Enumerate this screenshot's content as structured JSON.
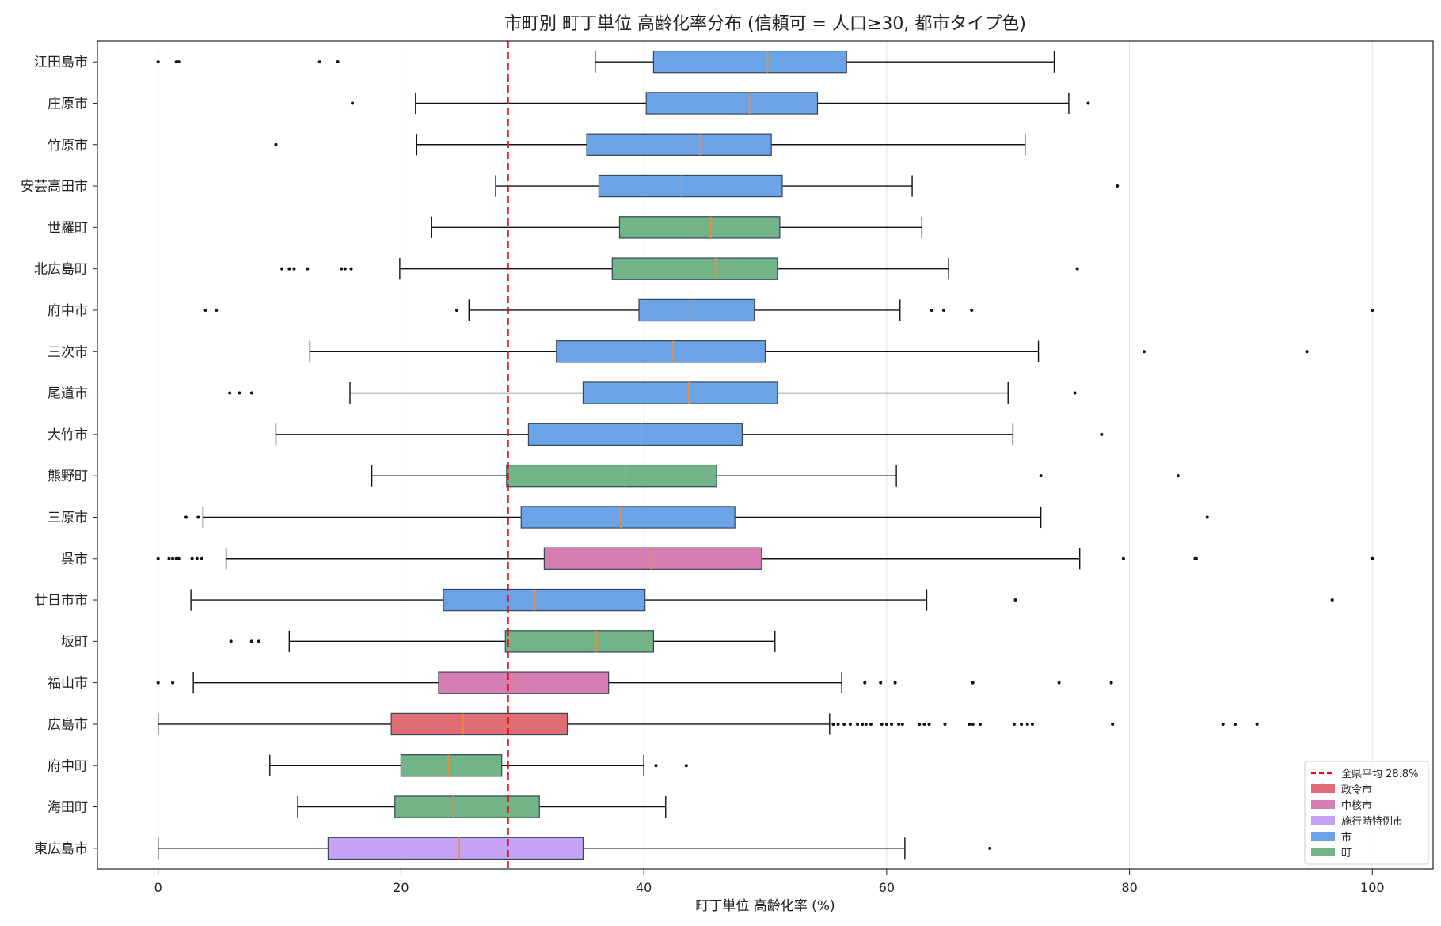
{
  "chart_data": {
    "type": "box",
    "orientation": "horizontal",
    "title": "市町別 町丁単位 高齢化率分布 (信頼可 = 人口≥30, 都市タイプ色)",
    "xlabel": "町丁単位 高齢化率 (%)",
    "ylabel": "",
    "xlim": [
      -5,
      105
    ],
    "xticks": [
      0,
      20,
      40,
      60,
      80,
      100
    ],
    "grid": "x",
    "reference_line": {
      "value": 28.8,
      "label": "全県平均 28.8%",
      "color": "#ff0000",
      "style": "dashed"
    },
    "legend": {
      "placement": "lower-right",
      "entries": [
        {
          "label": "全県平均 28.8%",
          "kind": "line",
          "color": "#ff0000"
        },
        {
          "label": "政令市",
          "kind": "patch",
          "color": "#e06c75"
        },
        {
          "label": "中核市",
          "kind": "patch",
          "color": "#d67db3"
        },
        {
          "label": "施行時特例市",
          "kind": "patch",
          "color": "#c4a3f5"
        },
        {
          "label": "市",
          "kind": "patch",
          "color": "#6aa3e6"
        },
        {
          "label": "町",
          "kind": "patch",
          "color": "#72b388"
        }
      ]
    },
    "type_colors": {
      "政令市": "#e06c75",
      "中核市": "#d67db3",
      "施行時特例市": "#c4a3f5",
      "市": "#6aa3e6",
      "町": "#72b388"
    },
    "median_color": "#f08a3e",
    "series": [
      {
        "name": "江田島市",
        "type": "市",
        "whisker_low": 36.0,
        "q1": 40.8,
        "median": 50.2,
        "q3": 56.7,
        "whisker_high": 73.8,
        "outliers": [
          0,
          1.5,
          1.7,
          13.3,
          14.8
        ]
      },
      {
        "name": "庄原市",
        "type": "市",
        "whisker_low": 21.2,
        "q1": 40.2,
        "median": 48.7,
        "q3": 54.3,
        "whisker_high": 75.0,
        "outliers": [
          16.0,
          76.6
        ]
      },
      {
        "name": "竹原市",
        "type": "市",
        "whisker_low": 21.3,
        "q1": 35.3,
        "median": 44.6,
        "q3": 50.5,
        "whisker_high": 71.4,
        "outliers": [
          9.7
        ]
      },
      {
        "name": "安芸高田市",
        "type": "市",
        "whisker_low": 27.8,
        "q1": 36.3,
        "median": 43.1,
        "q3": 51.4,
        "whisker_high": 62.1,
        "outliers": [
          79.0
        ]
      },
      {
        "name": "世羅町",
        "type": "町",
        "whisker_low": 22.5,
        "q1": 38.0,
        "median": 45.5,
        "q3": 51.2,
        "whisker_high": 62.9,
        "outliers": []
      },
      {
        "name": "北広島町",
        "type": "町",
        "whisker_low": 19.9,
        "q1": 37.4,
        "median": 45.9,
        "q3": 51.0,
        "whisker_high": 65.1,
        "outliers": [
          10.2,
          10.8,
          11.2,
          12.3,
          15.1,
          15.4,
          15.9,
          75.7
        ]
      },
      {
        "name": "府中市",
        "type": "市",
        "whisker_low": 25.6,
        "q1": 39.6,
        "median": 43.8,
        "q3": 49.1,
        "whisker_high": 61.1,
        "outliers": [
          3.9,
          4.8,
          24.6,
          63.7,
          64.7,
          67.0,
          100.0
        ]
      },
      {
        "name": "三次市",
        "type": "市",
        "whisker_low": 12.5,
        "q1": 32.8,
        "median": 42.4,
        "q3": 50.0,
        "whisker_high": 72.5,
        "outliers": [
          81.2,
          94.6
        ]
      },
      {
        "name": "尾道市",
        "type": "市",
        "whisker_low": 15.8,
        "q1": 35.0,
        "median": 43.7,
        "q3": 51.0,
        "whisker_high": 70.0,
        "outliers": [
          5.9,
          6.7,
          7.7,
          75.5
        ]
      },
      {
        "name": "大竹市",
        "type": "市",
        "whisker_low": 9.7,
        "q1": 30.5,
        "median": 39.8,
        "q3": 48.1,
        "whisker_high": 70.4,
        "outliers": [
          77.7
        ]
      },
      {
        "name": "熊野町",
        "type": "町",
        "whisker_low": 17.6,
        "q1": 28.7,
        "median": 38.5,
        "q3": 46.0,
        "whisker_high": 60.8,
        "outliers": [
          72.7,
          84.0
        ]
      },
      {
        "name": "三原市",
        "type": "市",
        "whisker_low": 3.7,
        "q1": 29.9,
        "median": 38.1,
        "q3": 47.5,
        "whisker_high": 72.7,
        "outliers": [
          2.3,
          3.3,
          86.4
        ]
      },
      {
        "name": "呉市",
        "type": "中核市",
        "whisker_low": 5.6,
        "q1": 31.8,
        "median": 40.6,
        "q3": 49.7,
        "whisker_high": 75.9,
        "outliers": [
          0,
          0.9,
          1.2,
          1.5,
          1.7,
          2.8,
          3.2,
          3.6,
          79.5,
          85.4,
          85.5,
          100.0
        ]
      },
      {
        "name": "廿日市市",
        "type": "市",
        "whisker_low": 2.7,
        "q1": 23.5,
        "median": 31.0,
        "q3": 40.1,
        "whisker_high": 63.3,
        "outliers": [
          70.6,
          96.7
        ]
      },
      {
        "name": "坂町",
        "type": "町",
        "whisker_low": 10.8,
        "q1": 28.6,
        "median": 36.1,
        "q3": 40.8,
        "whisker_high": 50.8,
        "outliers": [
          6.0,
          7.7,
          8.3
        ]
      },
      {
        "name": "福山市",
        "type": "中核市",
        "whisker_low": 2.9,
        "q1": 23.1,
        "median": 29.4,
        "q3": 37.1,
        "whisker_high": 56.3,
        "outliers": [
          0,
          1.2,
          58.2,
          59.5,
          60.7,
          67.1,
          74.2,
          78.5
        ]
      },
      {
        "name": "広島市",
        "type": "政令市",
        "whisker_low": 0,
        "q1": 19.2,
        "median": 25.1,
        "q3": 33.7,
        "whisker_high": 55.3,
        "outliers": [
          55.6,
          56.0,
          56.5,
          57.0,
          57.6,
          58.0,
          58.3,
          58.7,
          59.6,
          60.0,
          60.4,
          61.0,
          61.3,
          62.7,
          63.1,
          63.5,
          64.8,
          66.8,
          67.1,
          67.7,
          70.5,
          71.1,
          71.6,
          72.0,
          78.6,
          87.7,
          88.7,
          90.5
        ]
      },
      {
        "name": "府中町",
        "type": "町",
        "whisker_low": 9.2,
        "q1": 20.0,
        "median": 23.9,
        "q3": 28.3,
        "whisker_high": 40.0,
        "outliers": [
          41.0,
          43.5
        ]
      },
      {
        "name": "海田町",
        "type": "町",
        "whisker_low": 11.5,
        "q1": 19.5,
        "median": 24.3,
        "q3": 31.4,
        "whisker_high": 41.8,
        "outliers": []
      },
      {
        "name": "東広島市",
        "type": "施行時特例市",
        "whisker_low": 0,
        "q1": 14.0,
        "median": 24.8,
        "q3": 35.0,
        "whisker_high": 61.5,
        "outliers": [
          68.5
        ]
      }
    ]
  }
}
